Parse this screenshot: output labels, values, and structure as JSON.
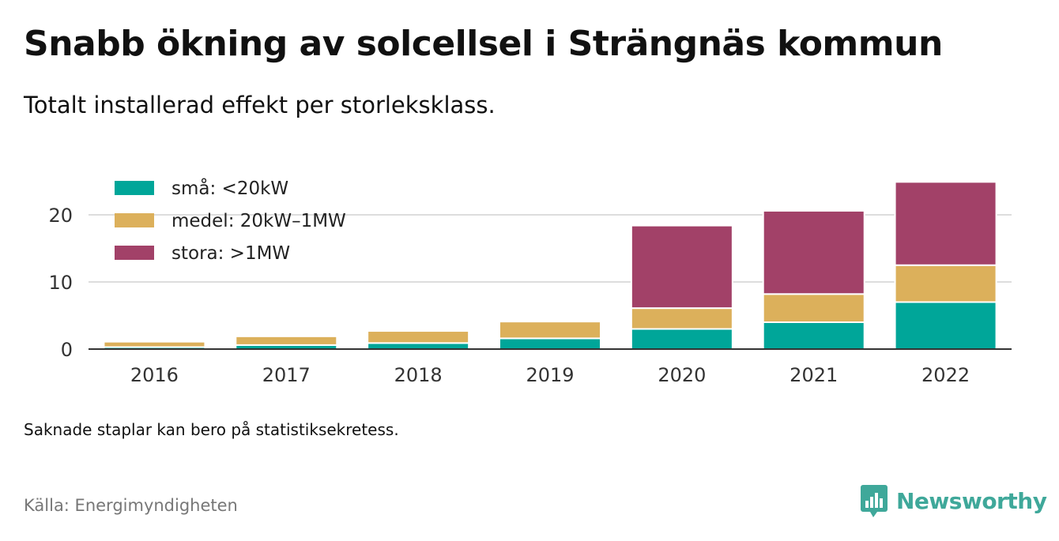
{
  "title": "Snabb ökning av solcellsel i Strängnäs kommun",
  "subtitle": "Totalt installerad effekt per storleksklass.",
  "note": "Saknade staplar kan bero på statistiksekretess.",
  "source": "Källa: Energimyndigheten",
  "brand": "Newsworthy",
  "colors": {
    "small": "#00a699",
    "medium": "#dcb05b",
    "large": "#a24168",
    "grid": "#dddddd",
    "axis": "#333333",
    "brand": "#3fa89a"
  },
  "chart_data": {
    "type": "bar",
    "stacked": true,
    "categories": [
      "2016",
      "2017",
      "2018",
      "2019",
      "2020",
      "2021",
      "2022"
    ],
    "series": [
      {
        "name": "små: <20kW",
        "color": "#00a699",
        "values": [
          0.3,
          0.6,
          0.9,
          1.6,
          3.0,
          4.0,
          7.0
        ]
      },
      {
        "name": "medel: 20kW–1MW",
        "color": "#dcb05b",
        "values": [
          0.8,
          1.3,
          1.8,
          2.5,
          3.1,
          4.2,
          5.5
        ]
      },
      {
        "name": "stora: >1MW",
        "color": "#a24168",
        "values": [
          0,
          0,
          0,
          0,
          12.3,
          12.4,
          12.4
        ]
      }
    ],
    "yticks": [
      0,
      10,
      20
    ],
    "ylim": [
      0,
      26
    ],
    "grid": true,
    "legend_position": "top-left"
  }
}
